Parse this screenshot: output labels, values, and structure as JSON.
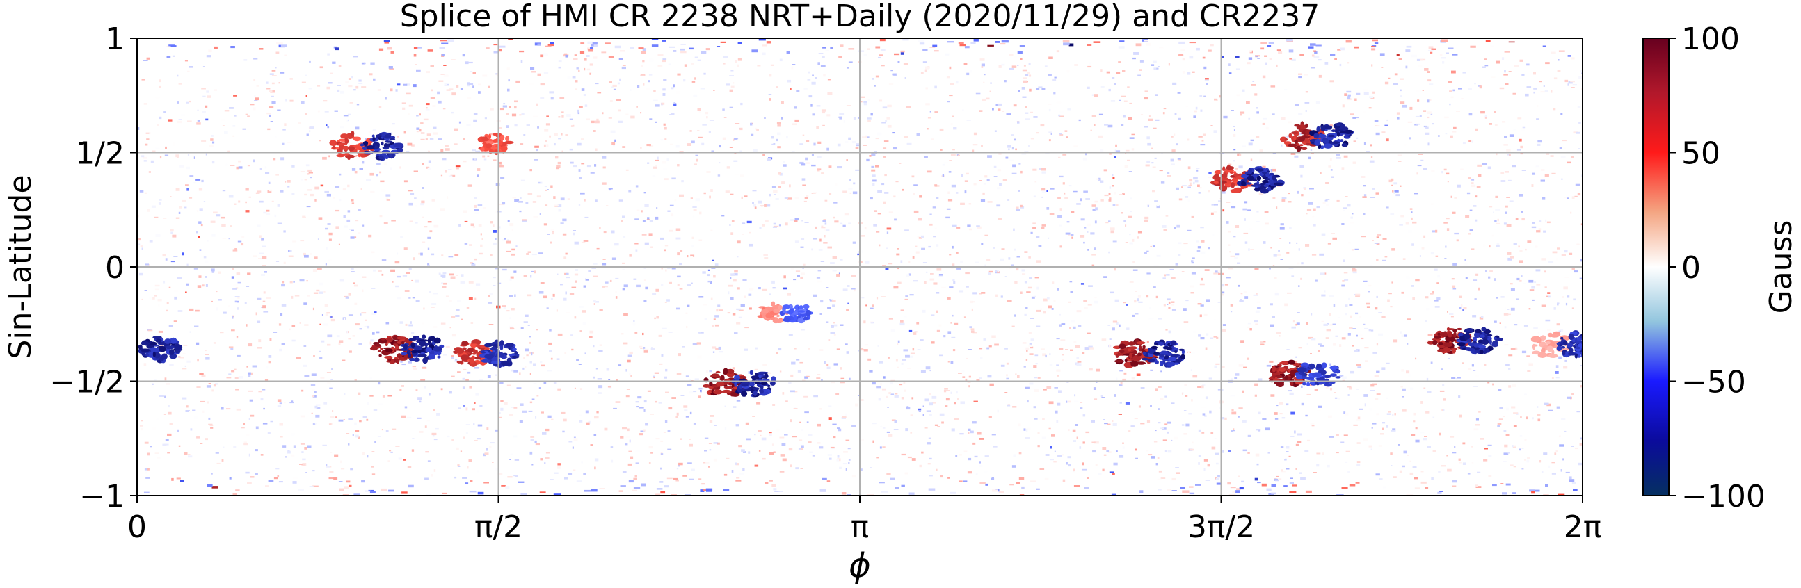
{
  "chart_data": {
    "type": "heatmap",
    "title": "Splice of HMI CR 2238 NRT+Daily (2020/11/29) and CR2237",
    "xlabel": "ϕ",
    "ylabel": "Sin-Latitude",
    "xlim": [
      0,
      6.283185
    ],
    "ylim": [
      -1,
      1
    ],
    "x_ticks": [
      {
        "value": 0,
        "label": "0"
      },
      {
        "value": 1.570796,
        "label": "π/2"
      },
      {
        "value": 3.141593,
        "label": "π"
      },
      {
        "value": 4.712389,
        "label": "3π/2"
      },
      {
        "value": 6.283185,
        "label": "2π"
      }
    ],
    "y_ticks": [
      {
        "value": 1,
        "label": "1"
      },
      {
        "value": 0.5,
        "label": "1/2"
      },
      {
        "value": 0,
        "label": "0"
      },
      {
        "value": -0.5,
        "label": "−1/2"
      },
      {
        "value": -1,
        "label": "−1"
      }
    ],
    "grid": true,
    "colorbar": {
      "label": "Gauss",
      "range": [
        -100,
        100
      ],
      "ticks": [
        {
          "value": 100,
          "label": "100"
        },
        {
          "value": 50,
          "label": "50"
        },
        {
          "value": 0,
          "label": "0"
        },
        {
          "value": -50,
          "label": "−50"
        },
        {
          "value": -100,
          "label": "−100"
        }
      ],
      "colormap": [
        "#67001f",
        "#d6604d",
        "#ffffff",
        "#4393c3",
        "#053061"
      ]
    },
    "active_regions": [
      {
        "phi": 0.03,
        "sinlat": -0.36,
        "positive": 0,
        "negative": -100
      },
      {
        "phi": 1.18,
        "sinlat": -0.36,
        "positive": 100,
        "negative": -100
      },
      {
        "phi": 1.52,
        "sinlat": -0.38,
        "positive": 80,
        "negative": -90
      },
      {
        "phi": 2.62,
        "sinlat": -0.51,
        "positive": 100,
        "negative": -100
      },
      {
        "phi": 2.82,
        "sinlat": -0.2,
        "positive": 40,
        "negative": -60
      },
      {
        "phi": 4.4,
        "sinlat": -0.38,
        "positive": 100,
        "negative": -100
      },
      {
        "phi": 5.07,
        "sinlat": -0.47,
        "positive": 100,
        "negative": -80
      },
      {
        "phi": 5.77,
        "sinlat": -0.32,
        "positive": 100,
        "negative": -100
      },
      {
        "phi": 6.2,
        "sinlat": -0.34,
        "positive": 30,
        "negative": -90
      },
      {
        "phi": 1.0,
        "sinlat": 0.53,
        "positive": 70,
        "negative": -100
      },
      {
        "phi": 1.6,
        "sinlat": 0.54,
        "positive": 60,
        "negative": 0
      },
      {
        "phi": 4.82,
        "sinlat": 0.38,
        "positive": 80,
        "negative": -100
      },
      {
        "phi": 5.13,
        "sinlat": 0.57,
        "positive": 90,
        "negative": -100
      }
    ]
  }
}
